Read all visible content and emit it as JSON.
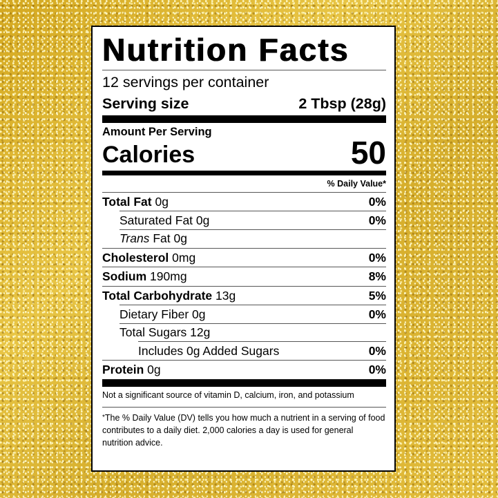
{
  "label": {
    "title": "Nutrition Facts",
    "servings_per_container": "12 servings per container",
    "serving_size_label": "Serving size",
    "serving_size_value": "2 Tbsp (28g)",
    "amount_per_serving": "Amount Per Serving",
    "calories_label": "Calories",
    "calories_value": "50",
    "daily_value_header": "% Daily Value*",
    "nutrients": [
      {
        "name": "Total Fat",
        "amount": "0g",
        "dv": "0%"
      },
      {
        "name": "Saturated Fat",
        "amount": "0g",
        "dv": "0%"
      },
      {
        "name_italic": "Trans",
        "name": "Fat",
        "amount": "0g",
        "dv": ""
      },
      {
        "name": "Cholesterol",
        "amount": "0mg",
        "dv": "0%"
      },
      {
        "name": "Sodium",
        "amount": "190mg",
        "dv": "8%"
      },
      {
        "name": "Total Carbohydrate",
        "amount": "13g",
        "dv": "5%"
      },
      {
        "name": "Dietary Fiber",
        "amount": "0g",
        "dv": "0%"
      },
      {
        "name": "Total Sugars",
        "amount": "12g",
        "dv": ""
      },
      {
        "name": "Includes 0g Added Sugars",
        "amount": "",
        "dv": "0%"
      },
      {
        "name": "Protein",
        "amount": "0g",
        "dv": "0%"
      }
    ],
    "vitamin_note": "Not a significant source of vitamin D, calcium, iron, and potassium",
    "footnote_star": "*",
    "footnote": "The % Daily Value (DV) tells you how much a nutrient in a serving of food contributes to a daily diet. 2,000 calories a day is used for general nutrition advice."
  }
}
